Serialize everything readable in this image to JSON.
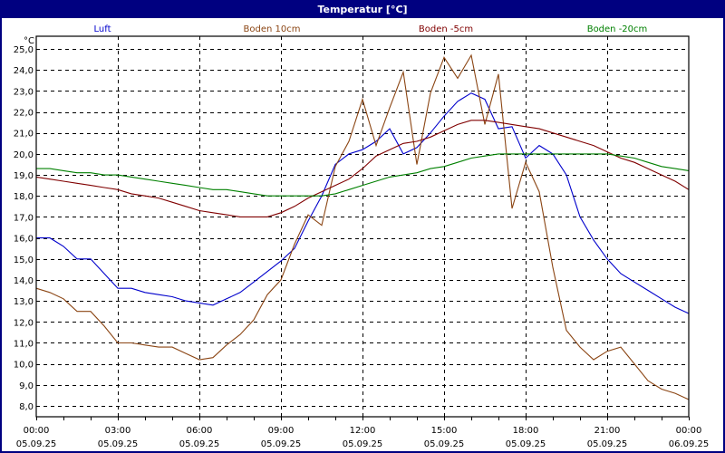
{
  "window": {
    "title": "Temperatur [°C]"
  },
  "chart_data": {
    "type": "line",
    "title": "Temperatur [°C]",
    "ylabel": "°C",
    "xlabel": "",
    "ylim": [
      7.5,
      25.6
    ],
    "grid": true,
    "legend_position": "top",
    "y_ticks": [
      "25,0",
      "24,0",
      "23,0",
      "22,0",
      "21,0",
      "20,0",
      "19,0",
      "18,0",
      "17,0",
      "16,0",
      "15,0",
      "14,0",
      "13,0",
      "12,0",
      "11,0",
      "10,0",
      "9,0",
      "8,0"
    ],
    "x_ticks": [
      {
        "time": "00:00",
        "date": "05.09.25"
      },
      {
        "time": "03:00",
        "date": "05.09.25"
      },
      {
        "time": "06:00",
        "date": "05.09.25"
      },
      {
        "time": "09:00",
        "date": "05.09.25"
      },
      {
        "time": "12:00",
        "date": "05.09.25"
      },
      {
        "time": "15:00",
        "date": "05.09.25"
      },
      {
        "time": "18:00",
        "date": "05.09.25"
      },
      {
        "time": "21:00",
        "date": "05.09.25"
      },
      {
        "time": "00:00",
        "date": "06.09.25"
      }
    ],
    "x_hours": [
      0,
      0.5,
      1,
      1.5,
      2,
      2.5,
      3,
      3.5,
      4,
      4.5,
      5,
      5.5,
      6,
      6.5,
      7,
      7.5,
      8,
      8.5,
      9,
      9.5,
      10,
      10.5,
      11,
      11.5,
      12,
      12.5,
      13,
      13.5,
      14,
      14.5,
      15,
      15.5,
      16,
      16.5,
      17,
      17.5,
      18,
      18.5,
      19,
      19.5,
      20,
      20.5,
      21,
      21.5,
      22,
      22.5,
      23,
      23.5,
      24
    ],
    "series": [
      {
        "name": "Luft",
        "color": "#0000cc",
        "values": [
          16.0,
          16.0,
          15.6,
          15.0,
          15.0,
          14.3,
          13.6,
          13.6,
          13.4,
          13.3,
          13.2,
          13.0,
          12.9,
          12.8,
          13.1,
          13.4,
          13.9,
          14.4,
          14.9,
          15.5,
          16.8,
          18.0,
          19.5,
          20.0,
          20.2,
          20.6,
          21.2,
          20.0,
          20.3,
          21.0,
          21.8,
          22.5,
          22.9,
          22.6,
          21.2,
          21.3,
          19.8,
          20.4,
          20.0,
          19.0,
          17.0,
          15.9,
          15.0,
          14.3,
          13.9,
          13.5,
          13.1,
          12.7,
          12.4
        ]
      },
      {
        "name": "Boden 10cm",
        "color": "#8b4513",
        "values": [
          13.6,
          13.4,
          13.1,
          12.5,
          12.5,
          11.8,
          11.0,
          11.0,
          10.9,
          10.8,
          10.8,
          10.5,
          10.2,
          10.3,
          10.9,
          11.4,
          12.1,
          13.3,
          14.0,
          15.7,
          17.1,
          16.6,
          19.4,
          20.6,
          22.6,
          20.4,
          22.2,
          23.9,
          19.5,
          22.9,
          24.6,
          23.6,
          24.7,
          21.4,
          23.8,
          17.4,
          19.6,
          18.2,
          14.6,
          11.6,
          10.8,
          10.2,
          10.6,
          10.8,
          10.0,
          9.2,
          8.8,
          8.6,
          8.3
        ]
      },
      {
        "name": "Boden -5cm",
        "color": "#800000",
        "values": [
          18.9,
          18.8,
          18.7,
          18.6,
          18.5,
          18.4,
          18.3,
          18.1,
          18.0,
          17.9,
          17.7,
          17.5,
          17.3,
          17.2,
          17.1,
          17.0,
          17.0,
          17.0,
          17.2,
          17.5,
          17.9,
          18.2,
          18.5,
          18.8,
          19.3,
          19.9,
          20.2,
          20.5,
          20.6,
          20.8,
          21.1,
          21.4,
          21.6,
          21.6,
          21.5,
          21.4,
          21.3,
          21.2,
          21.0,
          20.8,
          20.6,
          20.4,
          20.1,
          19.8,
          19.6,
          19.3,
          19.0,
          18.7,
          18.3
        ]
      },
      {
        "name": "Boden -20cm",
        "color": "#008000",
        "values": [
          19.3,
          19.3,
          19.2,
          19.1,
          19.1,
          19.0,
          19.0,
          18.9,
          18.8,
          18.7,
          18.6,
          18.5,
          18.4,
          18.3,
          18.3,
          18.2,
          18.1,
          18.0,
          18.0,
          18.0,
          18.0,
          18.0,
          18.1,
          18.3,
          18.5,
          18.7,
          18.9,
          19.0,
          19.1,
          19.3,
          19.4,
          19.6,
          19.8,
          19.9,
          20.0,
          20.0,
          20.0,
          20.0,
          20.0,
          20.0,
          20.0,
          20.0,
          20.0,
          19.9,
          19.8,
          19.6,
          19.4,
          19.3,
          19.2
        ]
      }
    ]
  }
}
